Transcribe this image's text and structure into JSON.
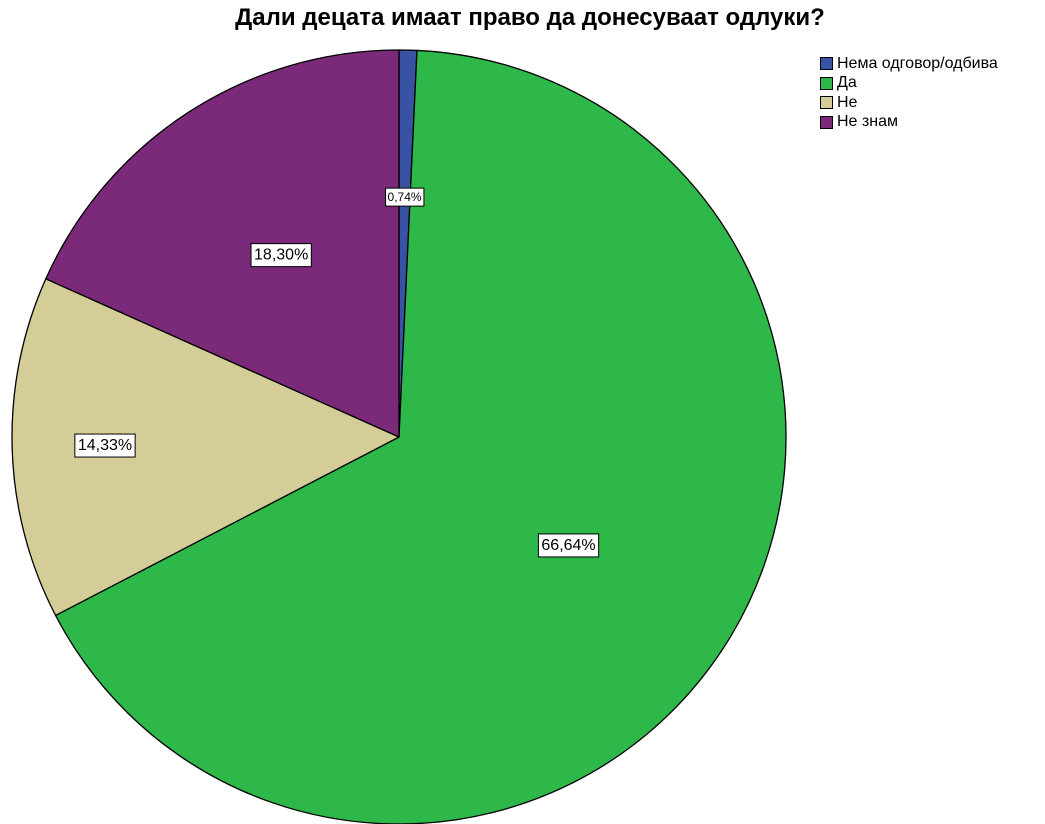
{
  "chart_data": {
    "type": "pie",
    "title": "Дали децата имаат право да донесуваат одлуки?",
    "slices": [
      {
        "name": "Нема одговор/одбива",
        "value": 0.74,
        "label": "0,74%",
        "color": "#3953a4"
      },
      {
        "name": "Да",
        "value": 66.64,
        "label": "66,64%",
        "color": "#2fb84a"
      },
      {
        "name": "Не",
        "value": 14.33,
        "label": "14,33%",
        "color": "#d4cd98"
      },
      {
        "name": "Не знам",
        "value": 18.3,
        "label": "18,30%",
        "color": "#7b2a7a"
      }
    ],
    "start_angle": "12 o'clock",
    "direction": "clockwise",
    "legend_position": "top-right",
    "show_percent_labels": true
  }
}
